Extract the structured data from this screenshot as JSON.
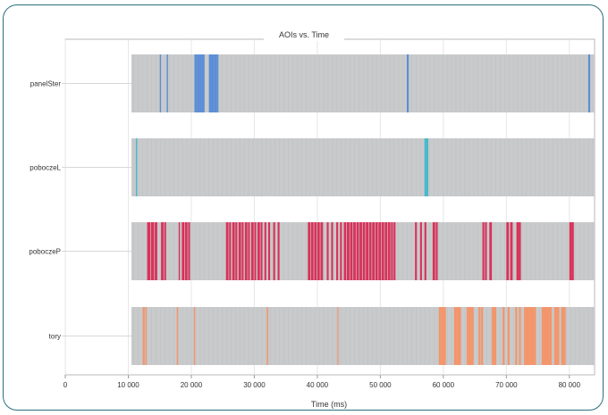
{
  "chart_data": {
    "type": "timeline",
    "title": "AOIs vs. Time",
    "xlabel": "Time (ms)",
    "ylabel": "",
    "xlim": [
      0,
      84000
    ],
    "xticks": [
      {
        "value": 0,
        "label": "0"
      },
      {
        "value": 10000,
        "label": "10 000"
      },
      {
        "value": 20000,
        "label": "20 000"
      },
      {
        "value": 30000,
        "label": "30 000"
      },
      {
        "value": 40000,
        "label": "40 000"
      },
      {
        "value": 50000,
        "label": "50 000"
      },
      {
        "value": 60000,
        "label": "60 000"
      },
      {
        "value": 70000,
        "label": "70 000"
      },
      {
        "value": 80000,
        "label": "80 000"
      }
    ],
    "grid": true,
    "background_span": [
      10500,
      84000
    ],
    "background_color": "#c8cacb",
    "categories": [
      "panelSter",
      "poboczeL",
      "poboczeP",
      "tory"
    ],
    "series": [
      {
        "color": "#5b8ed6",
        "intervals": [
          [
            15000,
            15200
          ],
          [
            16100,
            16300
          ],
          [
            20500,
            20900
          ],
          [
            20900,
            21300
          ],
          [
            21300,
            21700
          ],
          [
            21700,
            22100
          ],
          [
            22800,
            23200
          ],
          [
            23200,
            23600
          ],
          [
            23600,
            24000
          ],
          [
            24000,
            24300
          ],
          [
            54200,
            54500
          ],
          [
            83000,
            83300
          ]
        ]
      },
      {
        "color": "#45b8cc",
        "intervals": [
          [
            11200,
            11400
          ],
          [
            57000,
            57300
          ],
          [
            57300,
            57600
          ]
        ]
      },
      {
        "color": "#d8325a",
        "intervals": [
          [
            13000,
            13500
          ],
          [
            13600,
            14100
          ],
          [
            14200,
            14600
          ],
          [
            15200,
            15600
          ],
          [
            15700,
            16000
          ],
          [
            18000,
            18200
          ],
          [
            18500,
            18900
          ],
          [
            19000,
            19400
          ],
          [
            19500,
            19800
          ],
          [
            25500,
            25900
          ],
          [
            26000,
            26300
          ],
          [
            26500,
            26900
          ],
          [
            27000,
            27300
          ],
          [
            27500,
            27900
          ],
          [
            28000,
            28300
          ],
          [
            28500,
            28900
          ],
          [
            29000,
            29300
          ],
          [
            29500,
            29900
          ],
          [
            30000,
            30300
          ],
          [
            30500,
            30900
          ],
          [
            31000,
            31300
          ],
          [
            31600,
            31900
          ],
          [
            32200,
            32500
          ],
          [
            33000,
            33300
          ],
          [
            33700,
            34000
          ],
          [
            38500,
            38900
          ],
          [
            39000,
            39400
          ],
          [
            39500,
            39900
          ],
          [
            40000,
            40400
          ],
          [
            40500,
            40900
          ],
          [
            41500,
            41800
          ],
          [
            42200,
            42500
          ],
          [
            43000,
            43300
          ],
          [
            43600,
            43900
          ],
          [
            44200,
            44600
          ],
          [
            44700,
            45100
          ],
          [
            45200,
            45600
          ],
          [
            45700,
            46100
          ],
          [
            46200,
            46600
          ],
          [
            46700,
            47100
          ],
          [
            47200,
            47600
          ],
          [
            47700,
            48100
          ],
          [
            48200,
            48600
          ],
          [
            48700,
            49100
          ],
          [
            49200,
            49600
          ],
          [
            49700,
            50100
          ],
          [
            50200,
            50600
          ],
          [
            50700,
            51100
          ],
          [
            51200,
            51600
          ],
          [
            51700,
            52000
          ],
          [
            52100,
            52400
          ],
          [
            55500,
            55800
          ],
          [
            56300,
            56600
          ],
          [
            57000,
            57300
          ],
          [
            58300,
            58700
          ],
          [
            58800,
            59100
          ],
          [
            66200,
            66500
          ],
          [
            66600,
            66900
          ],
          [
            67300,
            67700
          ],
          [
            70000,
            70400
          ],
          [
            70600,
            71000
          ],
          [
            71600,
            72000
          ],
          [
            72000,
            72300
          ],
          [
            80000,
            80400
          ],
          [
            80400,
            80700
          ]
        ]
      },
      {
        "color": "#f4956a",
        "intervals": [
          [
            12300,
            12600
          ],
          [
            12700,
            12900
          ],
          [
            17700,
            17900
          ],
          [
            20400,
            20600
          ],
          [
            32000,
            32200
          ],
          [
            43200,
            43300
          ],
          [
            59300,
            59700
          ],
          [
            59700,
            60100
          ],
          [
            60100,
            60400
          ],
          [
            61700,
            62100
          ],
          [
            62100,
            62500
          ],
          [
            62500,
            62800
          ],
          [
            63700,
            64100
          ],
          [
            64100,
            64500
          ],
          [
            64500,
            64800
          ],
          [
            65600,
            65900
          ],
          [
            66000,
            66300
          ],
          [
            67700,
            68100
          ],
          [
            68100,
            68400
          ],
          [
            69400,
            69700
          ],
          [
            70200,
            70500
          ],
          [
            71400,
            71700
          ],
          [
            72000,
            72300
          ],
          [
            72800,
            73200
          ],
          [
            73200,
            73600
          ],
          [
            73600,
            74000
          ],
          [
            74000,
            74400
          ],
          [
            74400,
            74700
          ],
          [
            75600,
            76000
          ],
          [
            76000,
            76400
          ],
          [
            76400,
            76800
          ],
          [
            76800,
            77200
          ],
          [
            77600,
            78000
          ],
          [
            78000,
            78400
          ],
          [
            78700,
            79100
          ],
          [
            79100,
            79400
          ]
        ]
      }
    ]
  }
}
